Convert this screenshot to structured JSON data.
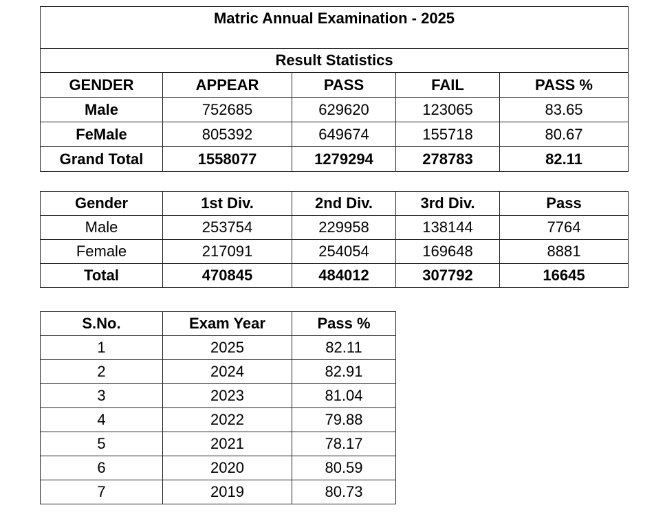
{
  "result_table": {
    "title": "Matric Annual Examination - 2025",
    "subtitle": "Result Statistics",
    "headers": [
      "GENDER",
      "APPEAR",
      "PASS",
      "FAIL",
      "PASS %"
    ],
    "rows": [
      [
        "Male",
        "752685",
        "629620",
        "123065",
        "83.65"
      ],
      [
        "FeMale",
        "805392",
        "649674",
        "155718",
        "80.67"
      ]
    ],
    "total": [
      "Grand Total",
      "1558077",
      "1279294",
      "278783",
      "82.11"
    ]
  },
  "division_table": {
    "headers": [
      "Gender",
      "1st Div.",
      "2nd Div.",
      "3rd Div.",
      "Pass"
    ],
    "rows": [
      [
        "Male",
        "253754",
        "229958",
        "138144",
        "7764"
      ],
      [
        "Female",
        "217091",
        "254054",
        "169648",
        "8881"
      ]
    ],
    "total": [
      "Total",
      "470845",
      "484012",
      "307792",
      "16645"
    ]
  },
  "history_table": {
    "headers": [
      "S.No.",
      "Exam Year",
      "Pass %"
    ],
    "rows": [
      [
        "1",
        "2025",
        "82.11"
      ],
      [
        "2",
        "2024",
        "82.91"
      ],
      [
        "3",
        "2023",
        "81.04"
      ],
      [
        "4",
        "2022",
        "79.88"
      ],
      [
        "5",
        "2021",
        "78.17"
      ],
      [
        "6",
        "2020",
        "80.59"
      ],
      [
        "7",
        "2019",
        "80.73"
      ]
    ]
  }
}
